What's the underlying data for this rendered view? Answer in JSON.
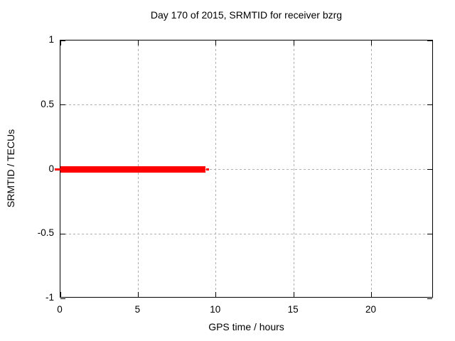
{
  "chart_data": {
    "type": "line",
    "title": "Day 170 of 2015, SRMTID for receiver bzrg",
    "xlabel": "GPS time / hours",
    "ylabel": "SRMTID / TECUs",
    "xlim": [
      0,
      24
    ],
    "ylim": [
      -1,
      1
    ],
    "xticks": [
      0,
      5,
      10,
      15,
      20
    ],
    "xtick_labels": [
      "0",
      "5",
      "10",
      "15",
      "20"
    ],
    "yticks": [
      1,
      0.5,
      0,
      -0.5,
      -1
    ],
    "ytick_labels": [
      "1",
      "0.5",
      "0",
      "-0.5",
      "-1"
    ],
    "grid": true,
    "grid_style": "dashed",
    "legend_position": "none",
    "colors": {
      "background": "#ffffff",
      "axis": "#000000",
      "grid": "#b0b0b0",
      "text": "#000000",
      "line": "#ff0000"
    },
    "series": [
      {
        "name": "SRMTID",
        "color": "#ff0000",
        "y_constant": 0,
        "x_start": 0,
        "x_end": 9.3,
        "segments": [
          {
            "x1": -0.37,
            "x2": 0.05,
            "y": 0,
            "px_thickness": 3
          },
          {
            "x1": 0,
            "x2": 9.33,
            "y": 0,
            "px_thickness": 9
          },
          {
            "x1": 9.37,
            "x2": 9.57,
            "y": 0,
            "px_thickness": 3
          }
        ]
      }
    ]
  }
}
